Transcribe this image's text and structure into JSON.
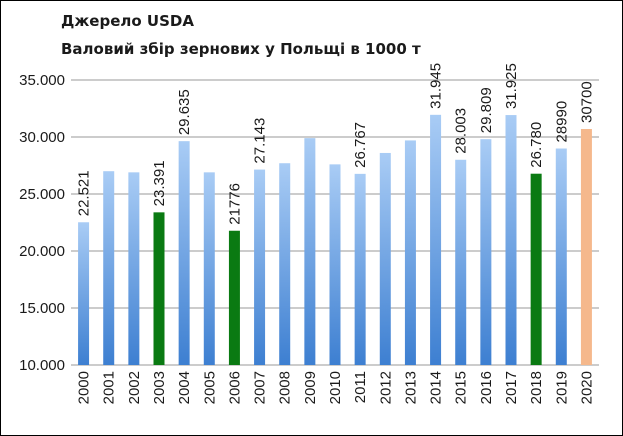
{
  "chart_data": {
    "type": "bar",
    "title": "Джерело USDA",
    "subtitle": "Валовий збір зернових у Польщі в 1000 т",
    "ylim": [
      10000,
      35000
    ],
    "yticks": [
      10000,
      15000,
      20000,
      25000,
      30000,
      35000
    ],
    "ytick_labels": [
      "10.000",
      "15.000",
      "20.000",
      "25.000",
      "30.000",
      "35.000"
    ],
    "grid": true,
    "categories": [
      "2000",
      "2001",
      "2002",
      "2003",
      "2004",
      "2005",
      "2006",
      "2007",
      "2008",
      "2009",
      "2010",
      "2011",
      "2012",
      "2013",
      "2014",
      "2015",
      "2016",
      "2017",
      "2018",
      "2019",
      "2020"
    ],
    "values": [
      22521,
      27000,
      26900,
      23391,
      29635,
      26900,
      21776,
      27143,
      27700,
      29900,
      27600,
      26767,
      28600,
      29700,
      31945,
      28003,
      29809,
      31925,
      26780,
      28990,
      30700
    ],
    "data_labels": [
      "22.521",
      "",
      "",
      "23.391",
      "29.635",
      "",
      "21776",
      "27.143",
      "",
      "",
      "",
      "26.767",
      "",
      "",
      "31.945",
      "28.003",
      "29.809",
      "31.925",
      "26.780",
      "28990",
      "30700"
    ],
    "bar_colors": [
      "blue",
      "blue",
      "blue",
      "green",
      "blue",
      "blue",
      "green",
      "blue",
      "blue",
      "blue",
      "blue",
      "blue",
      "blue",
      "blue",
      "blue",
      "blue",
      "blue",
      "blue",
      "green",
      "blue",
      "orange"
    ],
    "colors": {
      "blue_top": "#a9ccf5",
      "blue_bottom": "#3d7fd1",
      "green": "#0a7a12",
      "orange": "#f5b88c",
      "grid": "#9a9a9a"
    }
  }
}
